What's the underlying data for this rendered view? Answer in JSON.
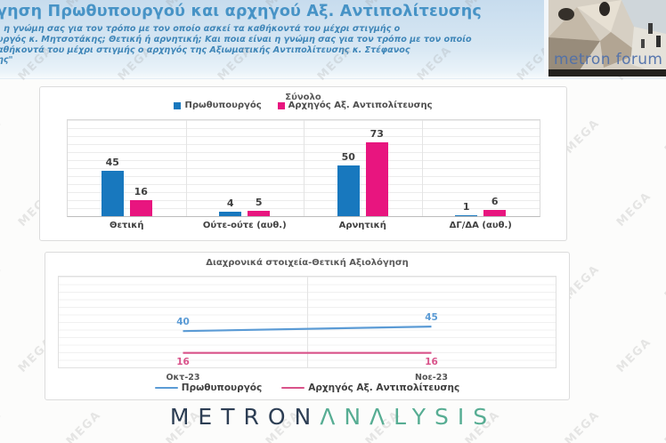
{
  "header": {
    "title": "γηση Πρωθυπουργού και αρχηγού Αξ. Αντιπολίτευσης",
    "subtitle_lines": [
      "ι η γνώμη σας για τον τρόπο με τον οποίο ασκεί τα καθήκοντά του μέχρι στιγμής ο",
      "υργός κ. Μητσοτάκης; Θετική ή αρνητική; Και ποια είναι η γνώμη σας για τον τρόπο με τον οποίο",
      "αθήκοντά του μέχρι στιγμής ο αρχηγός της Αξιωματικής Αντιπολίτευσης κ. Στέφανος",
      "ης\""
    ],
    "logo_text": "metron forum"
  },
  "watermark": {
    "text": "MEGA"
  },
  "colors": {
    "pm_bar": "#1878be",
    "opp_bar": "#e8157f",
    "pm_line": "#5b9bd5",
    "opp_line": "#d9538a",
    "title_blue": "#4793c6"
  },
  "chart_data": [
    {
      "type": "bar",
      "title": "Σύνολο",
      "categories": [
        "Θετική",
        "Ούτε-ούτε (αυθ.)",
        "Αρνητική",
        "ΔΓ/ΔΑ (αυθ.)"
      ],
      "series": [
        {
          "name": "Πρωθυπουργός",
          "color": "#1878be",
          "values": [
            45,
            4,
            50,
            1
          ]
        },
        {
          "name": "Αρχηγός Αξ. Αντιπολίτευσης",
          "color": "#e8157f",
          "values": [
            16,
            5,
            73,
            6
          ]
        }
      ],
      "ylim": [
        0,
        95
      ],
      "grid": true,
      "legend_position": "top"
    },
    {
      "type": "line",
      "title": "Διαχρονικά στοιχεία-Θετική Αξιολόγηση",
      "x": [
        "Οκτ-23",
        "Νοε-23"
      ],
      "series": [
        {
          "name": "Πρωθυπουργός",
          "color": "#5b9bd5",
          "values": [
            40,
            45
          ]
        },
        {
          "name": "Αρχηγός Αξ. Αντιπολίτευσης",
          "color": "#d9538a",
          "values": [
            16,
            16
          ]
        }
      ],
      "ylim": [
        0,
        100
      ],
      "grid": true,
      "legend_position": "bottom"
    }
  ],
  "footer": {
    "brand_primary": "METRON",
    "brand_secondary": "ΛNΛLYSIS"
  }
}
